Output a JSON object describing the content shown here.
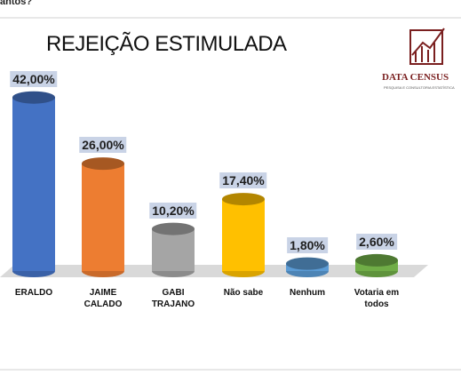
{
  "header": {
    "question": "antos?"
  },
  "logo": {
    "name": "DATA CENSUS",
    "tagline": "PESQUISA E CONSULTORIA ESTATÍSTICA"
  },
  "chart_data": {
    "type": "bar",
    "title": "REJEIÇÃO ESTIMULADA",
    "categories": [
      "ERALDO",
      "JAIME CALADO",
      "GABI TRAJANO",
      "Não sabe",
      "Nenhum",
      "Votaria em todos"
    ],
    "values": [
      42,
      26,
      10.2,
      17.4,
      1.8,
      2.6
    ],
    "value_labels": [
      "42,00%",
      "26,00%",
      "10,20%",
      "17,40%",
      "1,80%",
      "2,60%"
    ],
    "colors": [
      "#4472c4",
      "#ed7d31",
      "#a5a5a5",
      "#ffc000",
      "#5b9bd5",
      "#70ad47"
    ]
  }
}
